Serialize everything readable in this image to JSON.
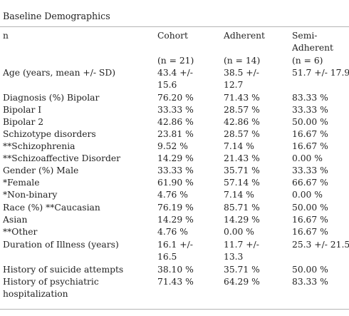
{
  "title": "Baseline Demographics",
  "header": {
    "label": "n",
    "cohort": "Cohort",
    "adherent": "Adherent",
    "semi_line1": "Semi-",
    "semi_line2": "Adherent",
    "cohort_n": "(n = 21)",
    "adherent_n": "(n = 14)",
    "semi_n": "(n = 6)"
  },
  "rows": [
    {
      "label": "Age (years, mean +/- SD)",
      "cohort": [
        "43.4 +/-",
        "15.6"
      ],
      "adherent": [
        "38.5 +/-",
        "12.7"
      ],
      "semi": [
        "51.7 +/- 17.9"
      ]
    },
    {
      "label": "Diagnosis (%) Bipolar",
      "cohort": [
        "76.20 %"
      ],
      "adherent": [
        "71.43 %"
      ],
      "semi": [
        "83.33 %"
      ]
    },
    {
      "label": "Bipolar I",
      "cohort": [
        "33.33 %"
      ],
      "adherent": [
        "28.57 %"
      ],
      "semi": [
        "33.33 %"
      ]
    },
    {
      "label": "Bipolar 2",
      "cohort": [
        "42.86 %"
      ],
      "adherent": [
        "42.86 %"
      ],
      "semi": [
        "50.00 %"
      ]
    },
    {
      "label": "Schizotype disorders",
      "cohort": [
        "23.81 %"
      ],
      "adherent": [
        "28.57 %"
      ],
      "semi": [
        "16.67 %"
      ]
    },
    {
      "label": "**Schizophrenia",
      "cohort": [
        "9.52 %"
      ],
      "adherent": [
        "7.14 %"
      ],
      "semi": [
        "16.67 %"
      ]
    },
    {
      "label": "**Schizoaffective Disorder",
      "cohort": [
        "14.29 %"
      ],
      "adherent": [
        "21.43 %"
      ],
      "semi": [
        "0.00 %"
      ]
    },
    {
      "label": "Gender (%) Male",
      "cohort": [
        "33.33 %"
      ],
      "adherent": [
        "35.71 %"
      ],
      "semi": [
        "33.33 %"
      ]
    },
    {
      "label": "*Female",
      "cohort": [
        "61.90 %"
      ],
      "adherent": [
        "57.14 %"
      ],
      "semi": [
        "66.67 %"
      ]
    },
    {
      "label": "*Non-binary",
      "cohort": [
        "4.76 %"
      ],
      "adherent": [
        "7.14 %"
      ],
      "semi": [
        "0.00 %"
      ]
    },
    {
      "label": "Race (%) **Caucasian",
      "cohort": [
        "76.19 %"
      ],
      "adherent": [
        "85.71 %"
      ],
      "semi": [
        "50.00 %"
      ]
    },
    {
      "label": "Asian",
      "cohort": [
        "14.29 %"
      ],
      "adherent": [
        "14.29 %"
      ],
      "semi": [
        "16.67 %"
      ]
    },
    {
      "label": "**Other",
      "cohort": [
        "4.76 %"
      ],
      "adherent": [
        "0.00 %"
      ],
      "semi": [
        "16.67 %"
      ]
    },
    {
      "label": "Duration of Illness (years)",
      "cohort": [
        "16.1 +/-",
        "16.5"
      ],
      "adherent": [
        "11.7 +/-",
        "13.3"
      ],
      "semi": [
        "25.3 +/- 21.5"
      ]
    },
    {
      "label": "History of suicide attempts",
      "cohort": [
        "38.10 %"
      ],
      "adherent": [
        "35.71 %"
      ],
      "semi": [
        "50.00 %"
      ]
    },
    {
      "label": "History of psychiatric",
      "label2": "hospitalization",
      "cohort": [
        "71.43 %"
      ],
      "adherent": [
        "64.29 %"
      ],
      "semi": [
        "83.33 %"
      ]
    }
  ]
}
